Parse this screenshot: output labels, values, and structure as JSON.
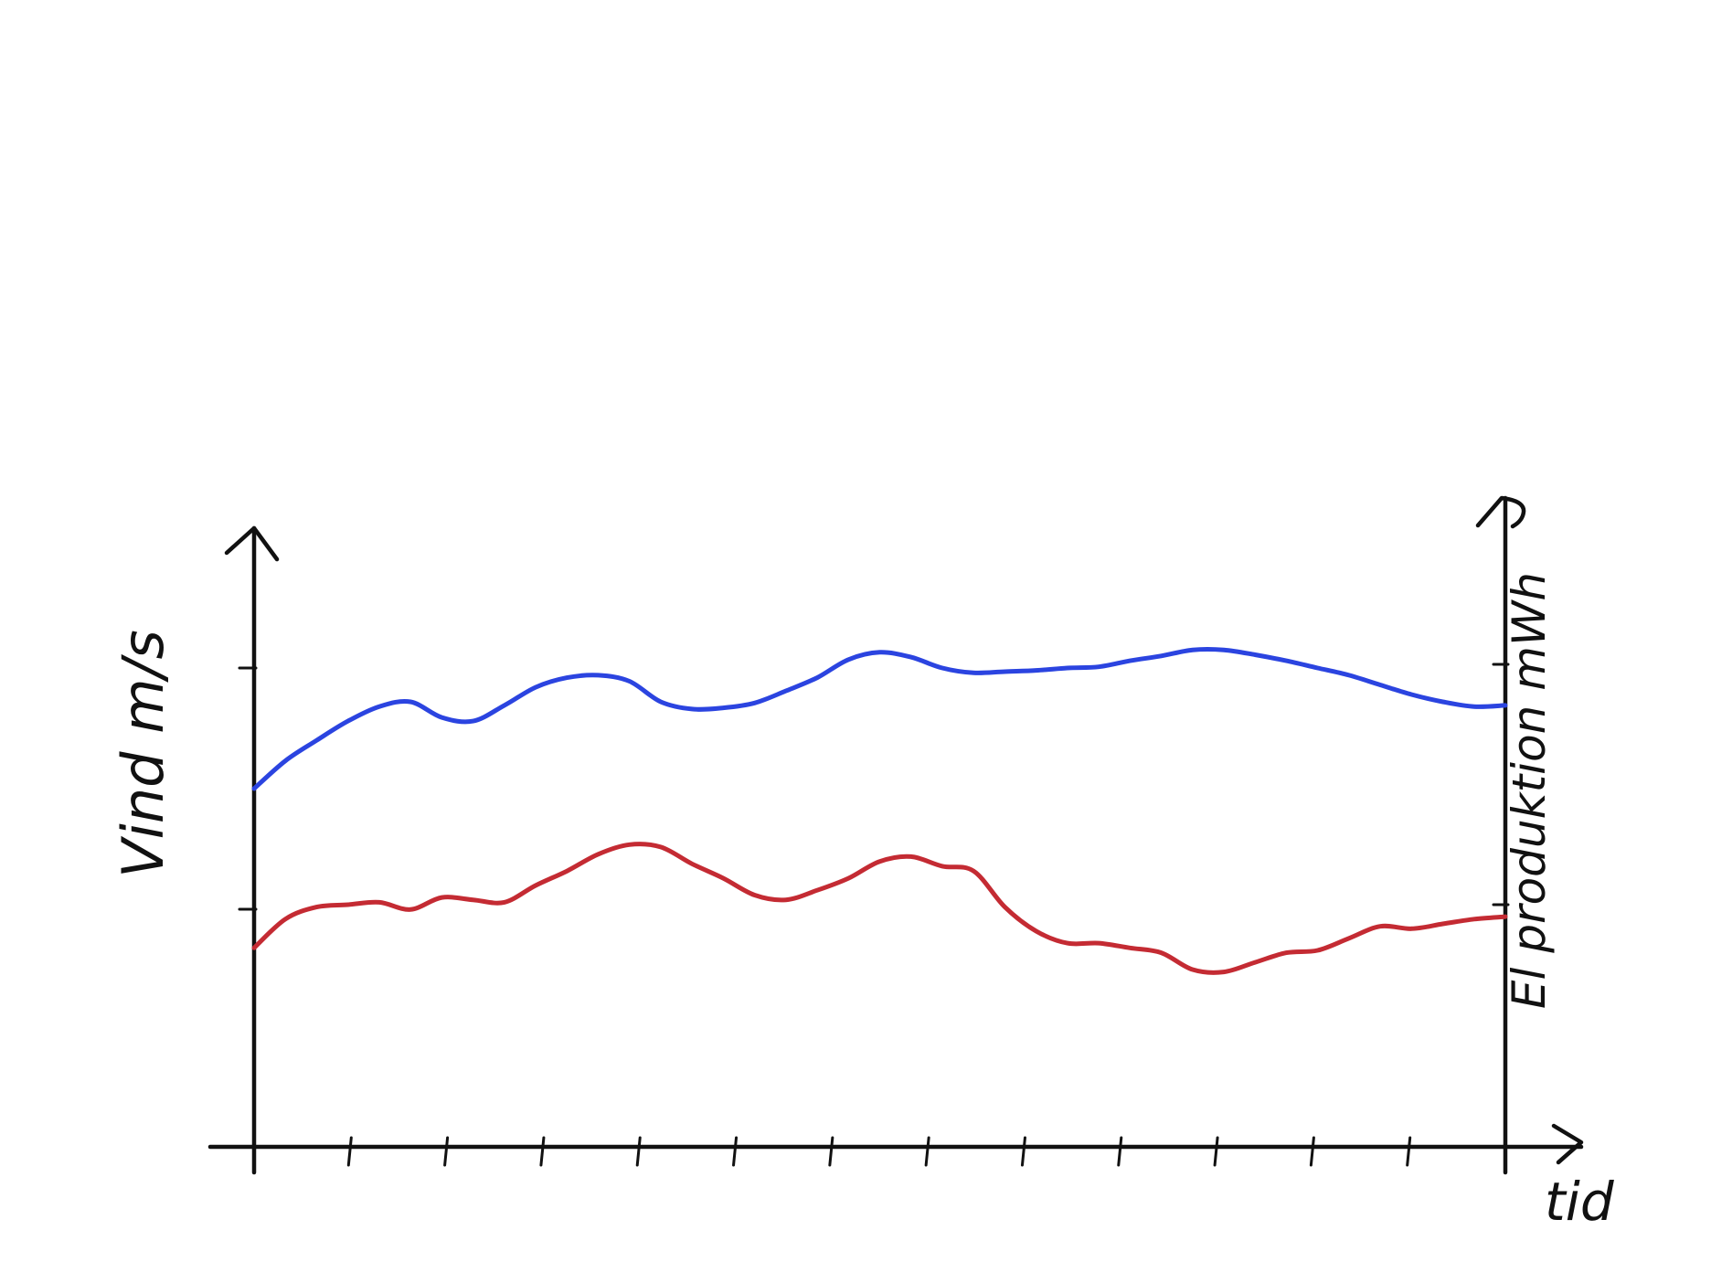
{
  "chart_data": {
    "type": "line",
    "title": "",
    "xlabel": "tid",
    "ylabel_left": "Vind m/s",
    "ylabel_right": "El produktion mWh",
    "x_ticks": 13,
    "grid": false,
    "legend": "none",
    "x": [
      0,
      1,
      2,
      3,
      4,
      5,
      6,
      7,
      8,
      9,
      10,
      11,
      12,
      13,
      14,
      15,
      16,
      17,
      18,
      19,
      20,
      21,
      22,
      23,
      24,
      25,
      26,
      27,
      28,
      29,
      30,
      31,
      32,
      33,
      34,
      35,
      36,
      37,
      38,
      39,
      40
    ],
    "series": [
      {
        "axis": "left",
        "color": "#2b44e0",
        "values": [
          2.0,
          2.23,
          2.4,
          2.56,
          2.68,
          2.72,
          2.59,
          2.56,
          2.69,
          2.84,
          2.92,
          2.94,
          2.89,
          2.72,
          2.66,
          2.67,
          2.71,
          2.81,
          2.92,
          3.07,
          3.13,
          3.09,
          3.0,
          2.96,
          2.97,
          2.98,
          3.0,
          3.01,
          3.06,
          3.1,
          3.15,
          3.15,
          3.11,
          3.06,
          3.0,
          2.94,
          2.86,
          2.78,
          2.72,
          2.68,
          2.69
        ]
      },
      {
        "axis": "right",
        "color": "#c42b33",
        "values": [
          0.82,
          0.94,
          0.99,
          1.0,
          1.01,
          0.98,
          1.03,
          1.02,
          1.01,
          1.08,
          1.14,
          1.21,
          1.25,
          1.24,
          1.17,
          1.11,
          1.04,
          1.02,
          1.06,
          1.11,
          1.18,
          1.2,
          1.16,
          1.14,
          0.99,
          0.89,
          0.84,
          0.84,
          0.82,
          0.8,
          0.73,
          0.72,
          0.76,
          0.8,
          0.81,
          0.86,
          0.91,
          0.9,
          0.92,
          0.94,
          0.95
        ]
      }
    ]
  },
  "colors": {
    "axis": "#111111",
    "wind": "#2b44e0",
    "power": "#c42b33"
  }
}
